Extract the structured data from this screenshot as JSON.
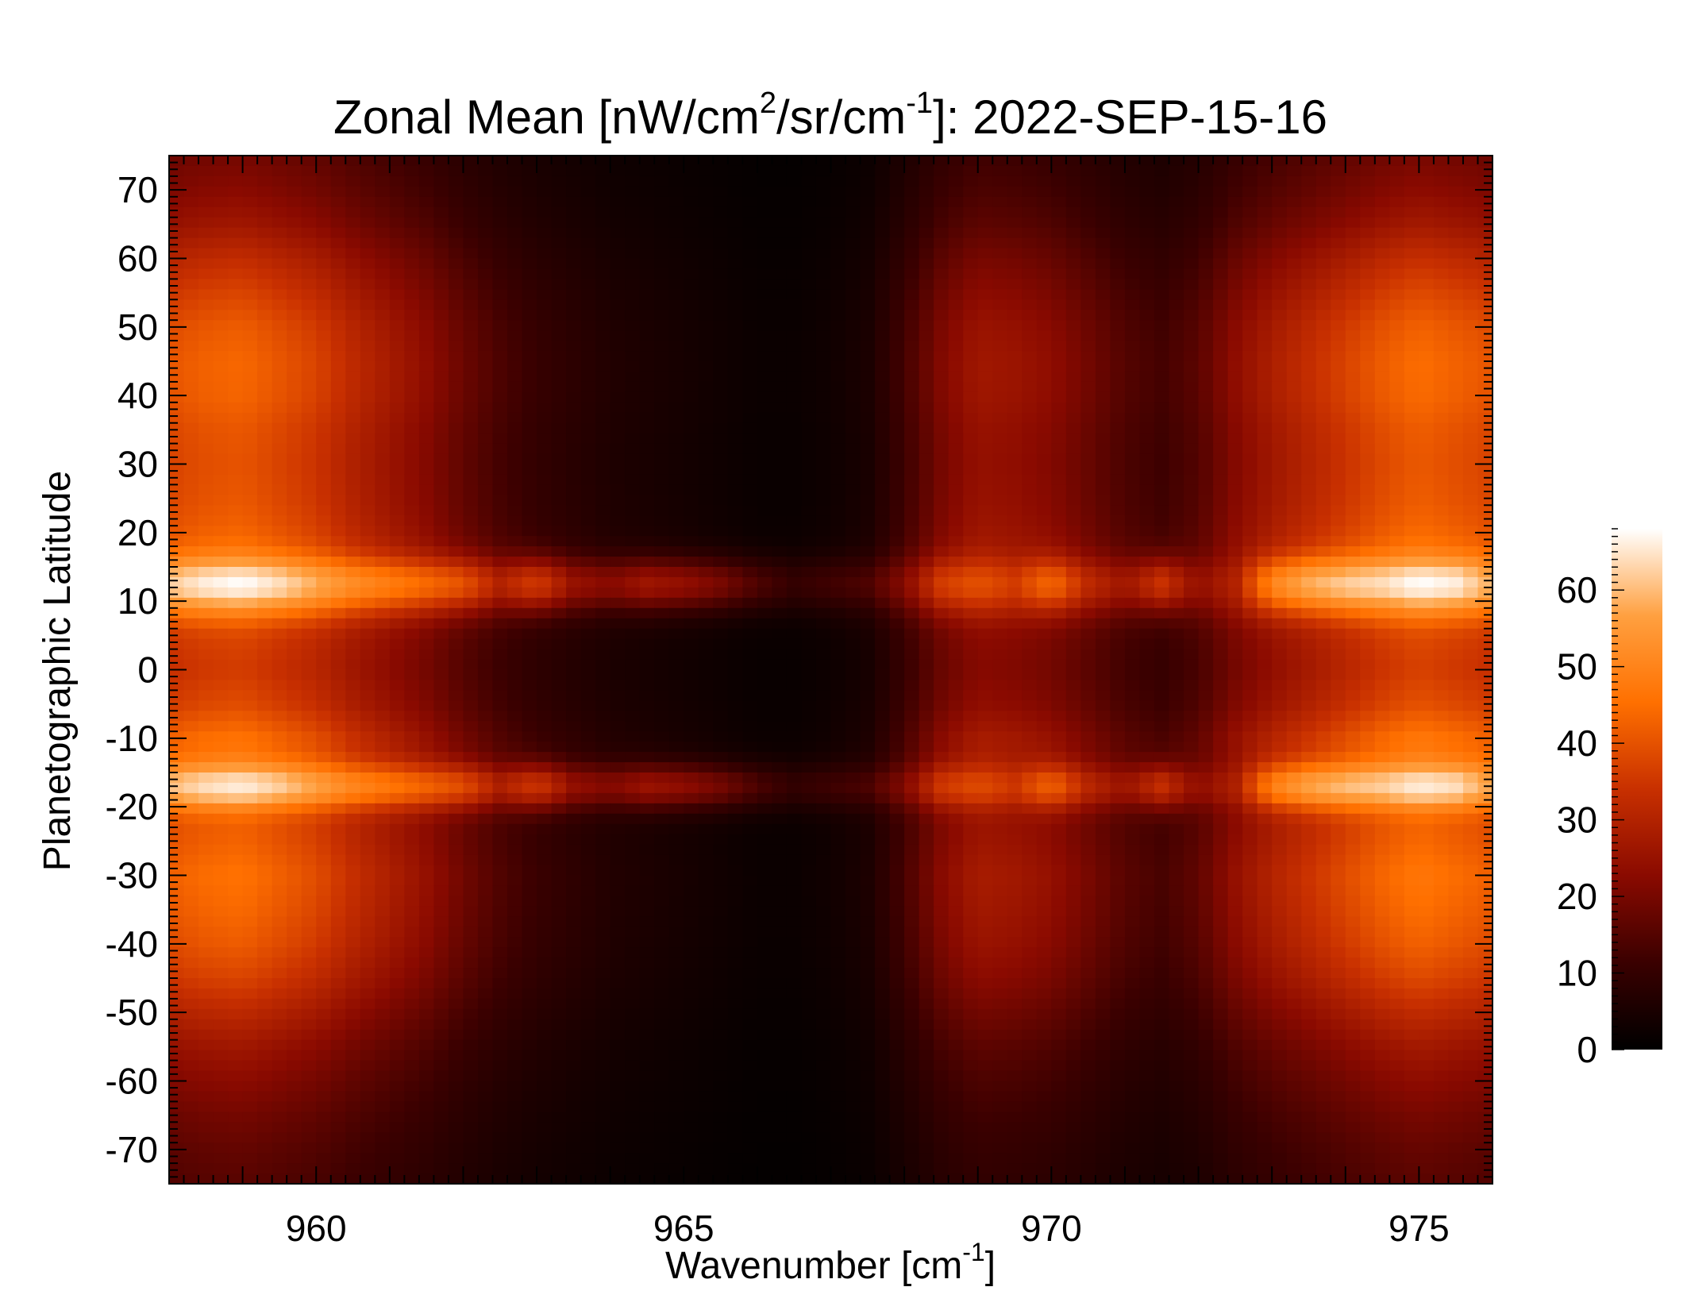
{
  "chart_data": {
    "type": "heatmap",
    "title": {
      "prefix": "Zonal Mean [nW/cm",
      "sup1": "2",
      "mid": "/sr/cm",
      "sup2": "-1",
      "suffix": "]: 2022-SEP-15-16"
    },
    "xlabel": {
      "text": "Wavenumber [cm",
      "sup": "-1",
      "suffix": "]"
    },
    "ylabel": "Planetographic Latitude",
    "xlim": [
      958,
      976
    ],
    "ylim": [
      -75,
      75
    ],
    "xticks": [
      960,
      965,
      970,
      975
    ],
    "yticks": [
      70,
      60,
      50,
      40,
      30,
      20,
      10,
      0,
      -10,
      -20,
      -30,
      -40,
      -50,
      -60,
      -70
    ],
    "colorbar": {
      "range": [
        0,
        68
      ],
      "ticks": [
        0,
        10,
        20,
        30,
        40,
        50,
        60
      ],
      "colormap": [
        "#000000",
        "#3a0000",
        "#8a0a00",
        "#c83000",
        "#ff7000",
        "#ffa040",
        "#ffffff"
      ]
    },
    "grid": false,
    "x_samples": [
      958.0,
      958.5,
      959.0,
      959.5,
      960.0,
      960.5,
      961.0,
      961.5,
      962.0,
      962.5,
      963.0,
      963.5,
      964.0,
      964.5,
      965.0,
      965.5,
      966.0,
      966.5,
      967.0,
      967.5,
      968.0,
      968.5,
      969.0,
      969.5,
      970.0,
      970.5,
      971.0,
      971.5,
      972.0,
      972.5,
      973.0,
      973.5,
      974.0,
      974.5,
      975.0,
      975.5,
      976.0
    ],
    "x_profile_background": [
      38,
      40,
      41,
      38,
      35,
      30,
      26,
      22,
      17,
      13,
      10,
      8,
      6,
      5,
      4,
      3,
      2,
      2,
      3,
      5,
      12,
      20,
      25,
      24,
      22,
      18,
      14,
      12,
      15,
      22,
      27,
      31,
      35,
      39,
      42,
      40,
      38
    ],
    "y_samples": [
      -75,
      -70,
      -65,
      -60,
      -55,
      -50,
      -45,
      -40,
      -35,
      -30,
      -25,
      -20,
      -17,
      -15,
      -10,
      -5,
      0,
      5,
      10,
      12,
      15,
      20,
      25,
      30,
      35,
      40,
      45,
      50,
      55,
      60,
      65,
      70,
      75
    ],
    "y_profile_background": [
      0.38,
      0.42,
      0.48,
      0.56,
      0.65,
      0.78,
      0.92,
      1.02,
      1.08,
      1.12,
      1.05,
      0.96,
      1.15,
      1.05,
      1.12,
      0.95,
      0.88,
      0.92,
      1.06,
      1.05,
      1.05,
      1.05,
      1.0,
      0.98,
      1.0,
      1.06,
      1.07,
      1.02,
      0.92,
      0.8,
      0.65,
      0.55,
      0.48
    ],
    "bands": [
      {
        "latitude": 12.5,
        "width": 4,
        "peak": 68
      },
      {
        "latitude": -17,
        "width": 3.5,
        "peak": 66
      }
    ],
    "x_profile_band": [
      62,
      66,
      68,
      64,
      58,
      52,
      48,
      44,
      40,
      30,
      36,
      25,
      22,
      26,
      24,
      20,
      14,
      10,
      12,
      14,
      22,
      36,
      40,
      36,
      44,
      32,
      26,
      34,
      24,
      30,
      50,
      58,
      62,
      64,
      68,
      66,
      58
    ]
  }
}
